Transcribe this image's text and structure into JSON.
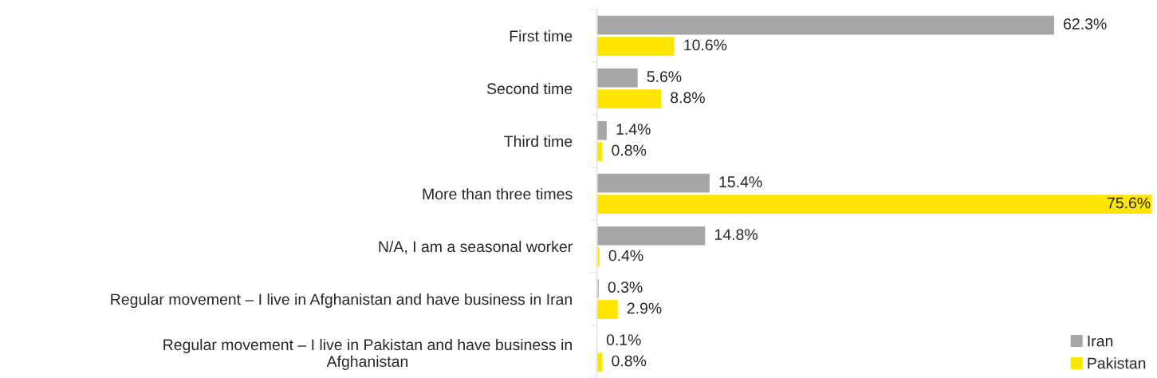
{
  "chart_data": {
    "type": "bar",
    "orientation": "horizontal",
    "legend": "bottom right",
    "grid": false,
    "categories": [
      "First time",
      "Second time",
      "Third time",
      "More than three times",
      "N/A, I am a seasonal worker",
      "Regular movement – I live in Afghanistan and have business in Iran",
      "Regular movement – I live in Pakistan and have business in\nAfghanistan"
    ],
    "series": [
      {
        "name": "Iran",
        "color": "#a6a6a6",
        "values": [
          62.3,
          5.6,
          1.4,
          15.4,
          14.8,
          0.3,
          0.1
        ],
        "value_labels": [
          "62.3%",
          "5.6%",
          "1.4%",
          "15.4%",
          "14.8%",
          "0.3%",
          "0.1%"
        ]
      },
      {
        "name": "Pakistan",
        "color": "#ffe600",
        "values": [
          10.6,
          8.8,
          0.8,
          75.6,
          0.4,
          2.9,
          0.8
        ],
        "value_labels": [
          "10.6%",
          "8.8%",
          "0.8%",
          "75.6%",
          "0.4%",
          "2.9%",
          "0.8%"
        ]
      }
    ]
  }
}
